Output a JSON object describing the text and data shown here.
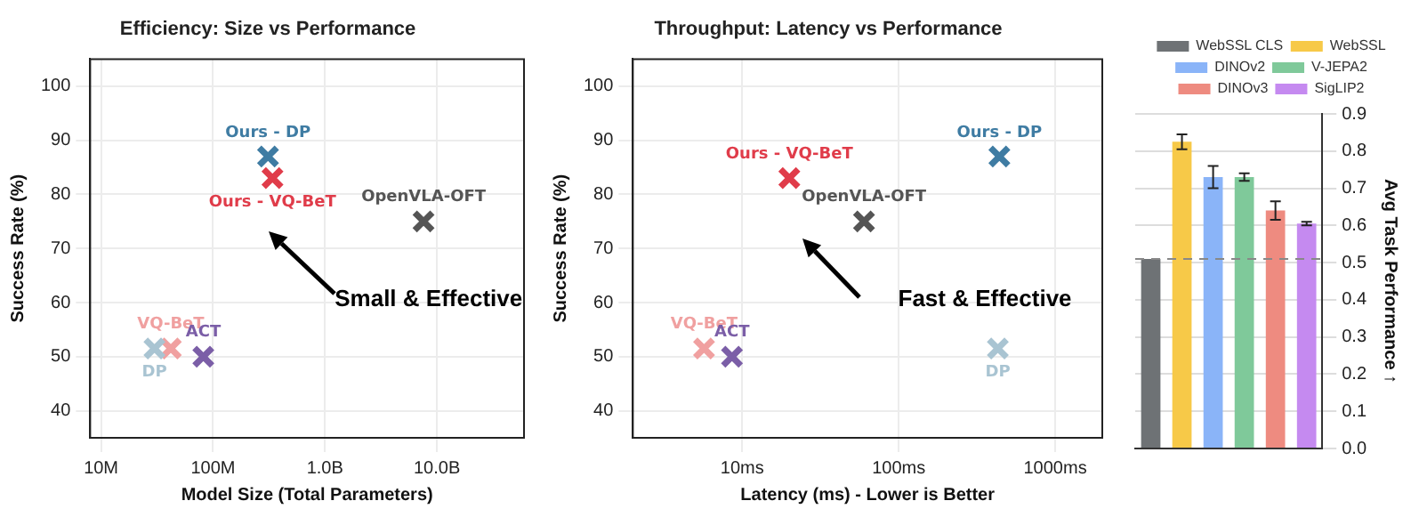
{
  "chart_data": [
    {
      "type": "scatter",
      "title": "Efficiency: Size vs Performance",
      "xlabel": "Model Size (Total Parameters)",
      "ylabel": "Success Rate (%)",
      "log": "x",
      "grid": true,
      "legend": false,
      "marker": "cross",
      "xlim": [
        8000000,
        60000000000
      ],
      "xticks": [
        {
          "value": 10000000,
          "label": "10M"
        },
        {
          "value": 100000000,
          "label": "100M"
        },
        {
          "value": 1000000000,
          "label": "1.0B"
        },
        {
          "value": 10000000000,
          "label": "10.0B"
        }
      ],
      "ylim": [
        35,
        105
      ],
      "yticks": [
        40,
        50,
        60,
        70,
        80,
        90,
        100
      ],
      "annotations": [
        "Small & Effective"
      ],
      "series": [
        {
          "name": "Ours - DP",
          "color": "#3f7ca3",
          "x": [
            310000000
          ],
          "values": [
            87
          ]
        },
        {
          "name": "Ours - VQ-BeT",
          "color": "#e03c4a",
          "x": [
            340000000
          ],
          "values": [
            83
          ]
        },
        {
          "name": "OpenVLA-OFT",
          "color": "#555555",
          "x": [
            7600000000
          ],
          "values": [
            75
          ]
        },
        {
          "name": "DP",
          "color": "#a9c4d2",
          "x": [
            30000000
          ],
          "values": [
            51.5
          ]
        },
        {
          "name": "VQ-BeT",
          "color": "#f0a0a0",
          "x": [
            42000000
          ],
          "values": [
            51.5
          ]
        },
        {
          "name": "ACT",
          "color": "#7b5ea7",
          "x": [
            82000000
          ],
          "values": [
            50
          ]
        }
      ]
    },
    {
      "type": "scatter",
      "title": "Throughput: Latency vs Performance",
      "xlabel": "Latency (ms) - Lower is Better",
      "ylabel": "Success Rate (%)",
      "log": "x",
      "grid": true,
      "legend": false,
      "marker": "cross",
      "xlim": [
        2,
        2000
      ],
      "xticks": [
        {
          "value": 10,
          "label": "10ms"
        },
        {
          "value": 100,
          "label": "100ms"
        },
        {
          "value": 1000,
          "label": "1000ms"
        }
      ],
      "ylim": [
        35,
        105
      ],
      "yticks": [
        40,
        50,
        60,
        70,
        80,
        90,
        100
      ],
      "annotations": [
        "Fast & Effective"
      ],
      "series": [
        {
          "name": "Ours - DP",
          "color": "#3f7ca3",
          "x": [
            440
          ],
          "values": [
            87
          ]
        },
        {
          "name": "Ours - VQ-BeT",
          "color": "#e03c4a",
          "x": [
            20
          ],
          "values": [
            83
          ]
        },
        {
          "name": "OpenVLA-OFT",
          "color": "#555555",
          "x": [
            60
          ],
          "values": [
            75
          ]
        },
        {
          "name": "DP",
          "color": "#a9c4d2",
          "x": [
            430
          ],
          "values": [
            51.5
          ]
        },
        {
          "name": "VQ-BeT",
          "color": "#f0a0a0",
          "x": [
            5.7
          ],
          "values": [
            51.5
          ]
        },
        {
          "name": "ACT",
          "color": "#7b5ea7",
          "x": [
            8.6
          ],
          "values": [
            50
          ]
        }
      ]
    },
    {
      "type": "bar",
      "ylabel": "Avg Task Performance ↑",
      "grid": "y",
      "legend": "top",
      "tick_labels": "y",
      "categories": [
        null,
        null,
        null,
        null,
        null,
        null
      ],
      "ylim": [
        0,
        0.9
      ],
      "yticks": [
        {
          "value": 0,
          "label": "0.0"
        },
        0.1,
        0.2,
        0.3,
        0.4,
        0.5,
        0.6,
        0.7,
        0.8,
        0.9
      ],
      "ref_lines": [
        {
          "axis": "y",
          "value": 0.51,
          "color": "#888888",
          "line_style": "dashed"
        }
      ],
      "series": [
        {
          "name": "WebSSL CLS",
          "color": "#6e7275",
          "values": [
            0.51,
            null,
            null,
            null,
            null,
            null
          ]
        },
        {
          "name": "WebSSL",
          "color": "#f7c948",
          "values": [
            null,
            0.825,
            null,
            null,
            null,
            null
          ],
          "errors": [
            null,
            0.02,
            null,
            null,
            null,
            null
          ]
        },
        {
          "name": "DINOv2",
          "color": "#8ab4f8",
          "values": [
            null,
            null,
            0.73,
            null,
            null,
            null
          ],
          "errors": [
            null,
            null,
            0.03,
            null,
            null,
            null
          ]
        },
        {
          "name": "V-JEPA2",
          "color": "#7fc99a",
          "values": [
            null,
            null,
            null,
            0.73,
            null,
            null
          ],
          "errors": [
            null,
            null,
            null,
            0.01,
            null,
            null
          ]
        },
        {
          "name": "DINOv3",
          "color": "#ee8b80",
          "values": [
            null,
            null,
            null,
            null,
            0.64,
            null
          ],
          "errors": [
            null,
            null,
            null,
            null,
            0.025,
            null
          ]
        },
        {
          "name": "SigLIP2",
          "color": "#c58af0",
          "values": [
            null,
            null,
            null,
            null,
            null,
            0.605
          ],
          "errors": [
            null,
            null,
            null,
            null,
            null,
            0.005
          ]
        }
      ]
    }
  ]
}
